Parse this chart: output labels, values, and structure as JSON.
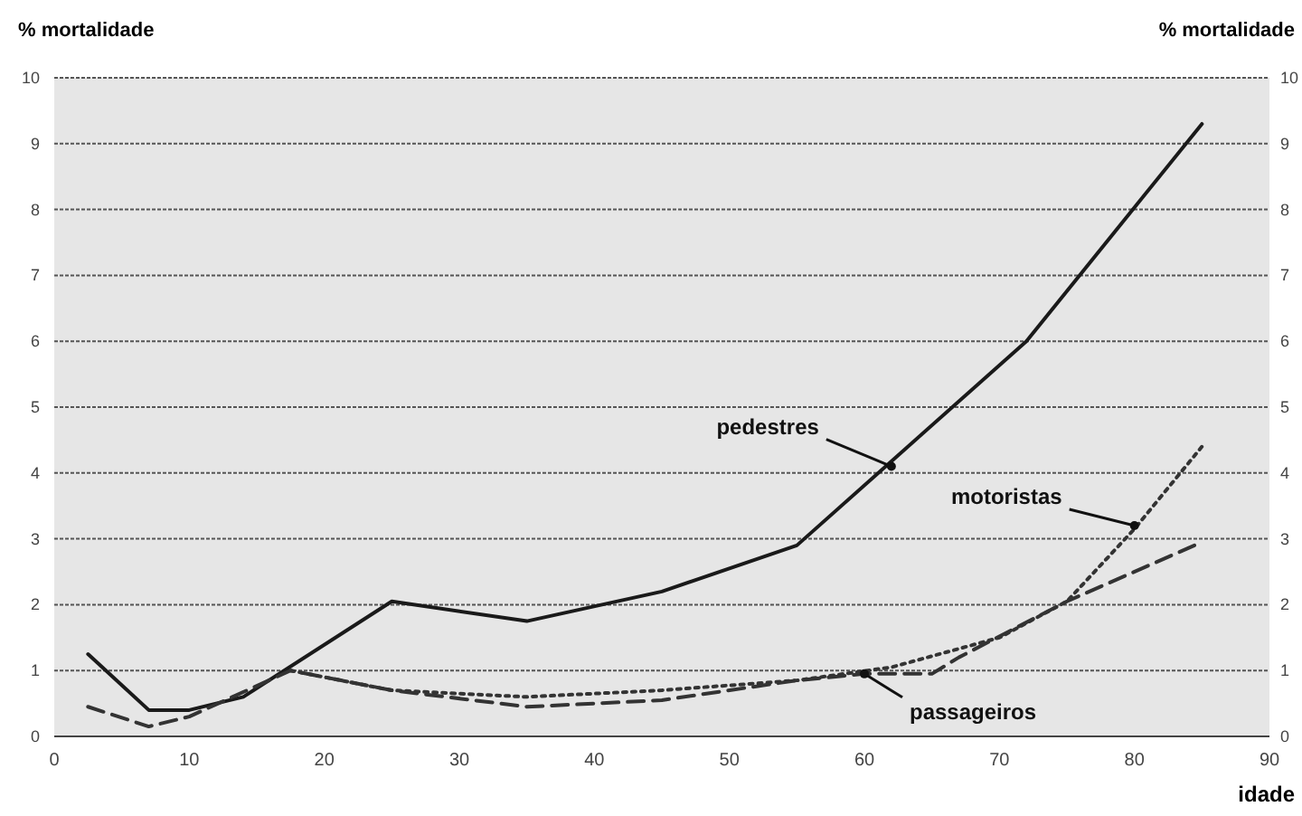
{
  "chart_data": {
    "type": "line",
    "xlabel": "idade",
    "ylabel": "% mortalidade",
    "y2label": "% mortalidade",
    "xlim": [
      0,
      90
    ],
    "xticks": [
      0,
      10,
      20,
      30,
      40,
      50,
      60,
      70,
      80,
      90
    ],
    "ylim": [
      0,
      10
    ],
    "yticks": [
      0,
      1,
      2,
      3,
      4,
      5,
      6,
      7,
      8,
      9,
      10
    ],
    "y2lim": [
      0,
      10
    ],
    "y2ticks": [
      0,
      1,
      2,
      3,
      4,
      5,
      6,
      7,
      8,
      9,
      10
    ],
    "grid": "y",
    "marker": "none",
    "series": [
      {
        "color": "#1a1a1a",
        "line_style": "solid",
        "x": [
          2.5,
          7,
          10,
          14,
          25,
          35,
          45,
          55,
          72,
          85
        ],
        "values": [
          1.25,
          0.4,
          0.4,
          0.6,
          2.05,
          1.75,
          2.2,
          2.9,
          6.0,
          9.3
        ]
      },
      {
        "color": "#333333",
        "line_style": "dotted",
        "x": [
          17.5,
          25,
          35,
          45,
          55,
          62,
          70,
          75,
          80,
          85
        ],
        "values": [
          1.0,
          0.7,
          0.6,
          0.7,
          0.85,
          1.05,
          1.5,
          2.05,
          3.15,
          4.4
        ]
      },
      {
        "color": "#333333",
        "line_style": "dashed",
        "x": [
          2.5,
          7,
          10,
          17.5,
          25,
          35,
          45,
          55,
          60,
          65,
          67,
          75,
          85
        ],
        "values": [
          0.45,
          0.15,
          0.3,
          1.0,
          0.7,
          0.45,
          0.55,
          0.85,
          0.95,
          0.95,
          1.2,
          2.05,
          2.95
        ]
      }
    ],
    "annotations": [
      {
        "text": "pedestres",
        "x": 62,
        "y": 4.1
      },
      {
        "text": "motoristas",
        "x": 80,
        "y": 3.2
      },
      {
        "text": "passageiros",
        "x": 60,
        "y": 0.95
      }
    ]
  }
}
